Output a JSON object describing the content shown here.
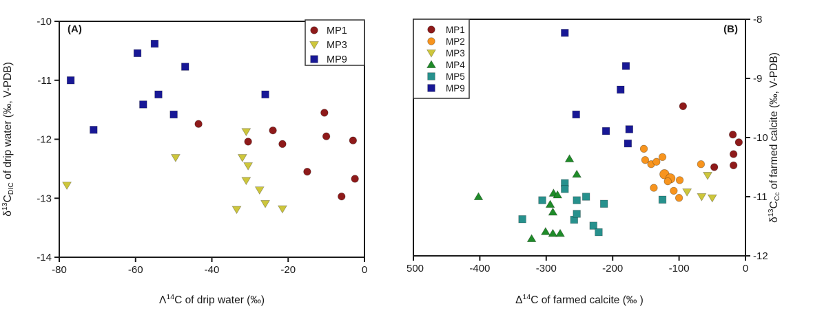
{
  "figure_type": "two-panel scatter figure",
  "chart_data": [
    {
      "type": "scatter",
      "panel_label": "(A)",
      "xlabel": "Λ¹⁴C of drip water (‰)",
      "ylabel": "δ¹³C_DIC of drip water (‰, V-PDB)",
      "xlabel_rich": [
        [
          "t",
          "Λ"
        ],
        [
          "sup",
          "14"
        ],
        [
          "t",
          "C of drip water (‰)"
        ]
      ],
      "ylabel_rich": [
        [
          "t",
          "δ"
        ],
        [
          "sup",
          "13"
        ],
        [
          "t",
          "C"
        ],
        [
          "sub",
          "DIC"
        ],
        [
          "t",
          " of drip water (‰, V-PDB)"
        ]
      ],
      "xlim": [
        -80,
        0
      ],
      "ylim": [
        -14,
        -10
      ],
      "xticks": [
        "-80",
        "-60",
        "-40",
        "-20",
        "0"
      ],
      "yticks": [
        "-10",
        "-11",
        "-12",
        "-13",
        "-14"
      ],
      "xtick_values": [
        -80,
        -60,
        -40,
        -20,
        0
      ],
      "ytick_values": [
        -10,
        -11,
        -12,
        -13,
        -14
      ],
      "y_axis_side": "left",
      "grid": false,
      "legend_position": "top-right",
      "series": [
        {
          "name": "MP1",
          "marker": "circle",
          "color": "#8E1A1A",
          "points": [
            [
              -43.5,
              -11.74
            ],
            [
              -30.5,
              -12.04
            ],
            [
              -24,
              -11.85
            ],
            [
              -21.5,
              -12.08
            ],
            [
              -15,
              -12.55
            ],
            [
              -10.5,
              -11.55
            ],
            [
              -10,
              -11.95
            ],
            [
              -6,
              -12.97
            ],
            [
              -3,
              -12.02
            ],
            [
              -2.5,
              -12.67
            ]
          ]
        },
        {
          "name": "MP3",
          "marker": "triangle-down",
          "color": "#CDC63C",
          "points": [
            [
              -78,
              -12.78
            ],
            [
              -49.5,
              -12.31
            ],
            [
              -33.5,
              -13.19
            ],
            [
              -32,
              -12.31
            ],
            [
              -31,
              -11.87
            ],
            [
              -30.5,
              -12.45
            ],
            [
              -31,
              -12.7
            ],
            [
              -27.5,
              -12.86
            ],
            [
              -26,
              -13.09
            ],
            [
              -21.5,
              -13.18
            ]
          ]
        },
        {
          "name": "MP9",
          "marker": "square",
          "color": "#181896",
          "points": [
            [
              -77,
              -11.0
            ],
            [
              -71,
              -11.84
            ],
            [
              -59.5,
              -10.54
            ],
            [
              -58,
              -11.41
            ],
            [
              -55,
              -10.38
            ],
            [
              -54,
              -11.24
            ],
            [
              -50,
              -11.58
            ],
            [
              -47,
              -10.77
            ],
            [
              -26,
              -11.24
            ]
          ]
        }
      ]
    },
    {
      "type": "scatter",
      "panel_label": "(B)",
      "xlabel": "Δ¹⁴C of farmed calcite (‰)",
      "ylabel": "δ¹³C_Cc of farmed calcite (‰, V-PDB)",
      "xlabel_rich": [
        [
          "t",
          "Δ"
        ],
        [
          "sup",
          "14"
        ],
        [
          "t",
          "C of farmed calcite (‰ )"
        ]
      ],
      "ylabel_rich": [
        [
          "t",
          "δ"
        ],
        [
          "sup",
          "13"
        ],
        [
          "t",
          "C"
        ],
        [
          "sub",
          "Cc"
        ],
        [
          "t",
          " of farmed calcite (‰, V-PDB)"
        ]
      ],
      "xlim": [
        -500,
        0
      ],
      "ylim": [
        -12,
        -8
      ],
      "xticks": [
        "-500",
        "-400",
        "-300",
        "-200",
        "-100",
        "0"
      ],
      "yticks": [
        "-8",
        "-9",
        "-10",
        "-11",
        "-12"
      ],
      "xtick_values": [
        -500,
        -400,
        -300,
        -200,
        -100,
        0
      ],
      "ytick_values": [
        -8,
        -9,
        -10,
        -11,
        -12
      ],
      "y_axis_side": "right",
      "grid": false,
      "legend_position": "top-left",
      "series": [
        {
          "name": "MP1",
          "marker": "circle",
          "color": "#8E1A1A",
          "points": [
            [
              -94,
              -9.47
            ],
            [
              -47,
              -10.5
            ],
            [
              -19,
              -9.95
            ],
            [
              -10,
              -10.08
            ],
            [
              -18,
              -10.28
            ],
            [
              -18,
              -10.47
            ]
          ]
        },
        {
          "name": "MP2",
          "marker": "circle",
          "color": "#F7941E",
          "points": [
            [
              -153,
              -10.19
            ],
            [
              -151,
              -10.38
            ],
            [
              -142,
              -10.45
            ],
            [
              -134,
              -10.41
            ],
            [
              -125,
              -10.33
            ],
            [
              -122,
              -10.62,
              1.3
            ],
            [
              -113,
              -10.69,
              1.3
            ],
            [
              -117,
              -10.74
            ],
            [
              -138,
              -10.85
            ],
            [
              -108,
              -10.9
            ],
            [
              -99,
              -10.72
            ],
            [
              -100,
              -11.02
            ],
            [
              -67,
              -10.45
            ]
          ]
        },
        {
          "name": "MP3",
          "marker": "triangle-down",
          "color": "#CDC63C",
          "points": [
            [
              -88,
              -10.92
            ],
            [
              -57,
              -10.64
            ],
            [
              -66,
              -11.0
            ],
            [
              -50,
              -11.02
            ]
          ]
        },
        {
          "name": "MP4",
          "marker": "triangle-up",
          "color": "#1F8B29",
          "points": [
            [
              -402,
              -11.0
            ],
            [
              -265,
              -10.36
            ],
            [
              -254,
              -10.62
            ],
            [
              -289,
              -10.94
            ],
            [
              -283,
              -10.97
            ],
            [
              -294,
              -11.13
            ],
            [
              -290,
              -11.26
            ],
            [
              -301,
              -11.59
            ],
            [
              -290,
              -11.62
            ],
            [
              -279,
              -11.62
            ],
            [
              -322,
              -11.71
            ]
          ]
        },
        {
          "name": "MP5",
          "marker": "square",
          "color": "#27918D",
          "points": [
            [
              -336,
              -11.38
            ],
            [
              -306,
              -11.06
            ],
            [
              -272,
              -10.77
            ],
            [
              -272,
              -10.87
            ],
            [
              -258,
              -11.39
            ],
            [
              -254,
              -11.06
            ],
            [
              -254,
              -11.29
            ],
            [
              -240,
              -11.0
            ],
            [
              -229,
              -11.49
            ],
            [
              -221,
              -11.6
            ],
            [
              -213,
              -11.12
            ],
            [
              -125,
              -11.05
            ]
          ]
        },
        {
          "name": "MP9",
          "marker": "square",
          "color": "#181896",
          "points": [
            [
              -272,
              -8.23
            ],
            [
              -255,
              -9.61
            ],
            [
              -210,
              -9.89
            ],
            [
              -188,
              -9.19
            ],
            [
              -180,
              -8.79
            ],
            [
              -177,
              -10.1
            ],
            [
              -175,
              -9.86
            ]
          ]
        }
      ]
    }
  ],
  "colors": {
    "mp1": "#8E1A1A",
    "mp2": "#F7941E",
    "mp3": "#CDC63C",
    "mp4": "#1F8B29",
    "mp5": "#27918D",
    "mp9": "#181896",
    "axis": "#1a1a1a",
    "background": "#ffffff"
  }
}
